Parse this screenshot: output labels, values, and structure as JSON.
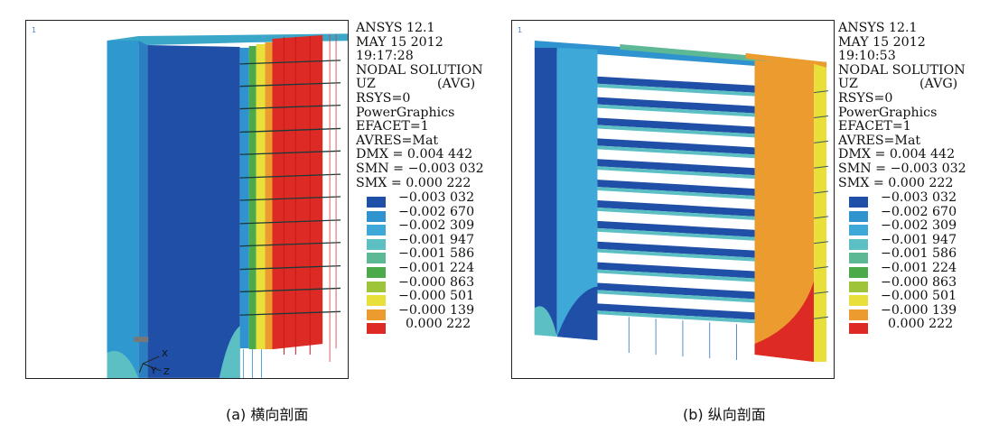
{
  "panels": [
    {
      "id": "a",
      "viewport_number": "1",
      "info": {
        "software": "ANSYS 12.1",
        "date": "MAY 15 2012",
        "time": "19:17:28",
        "solution": "NODAL SOLUTION",
        "component": "UZ",
        "avg": "(AVG)",
        "rsys": "RSYS=0",
        "graphics": "PowerGraphics",
        "efacet": "EFACET=1",
        "avres": "AVRES=Mat",
        "dmx": "DMX = 0.004 442",
        "smn": "SMN = −0.003 032",
        "smx": "SMX = 0.000 222"
      },
      "triad_labels": [
        "X",
        "Y",
        "Z"
      ],
      "caption": "(a) 横向剖面"
    },
    {
      "id": "b",
      "viewport_number": "1",
      "info": {
        "software": "ANSYS 12.1",
        "date": "MAY 15 2012",
        "time": "19:10:53",
        "solution": "NODAL SOLUTION",
        "component": "UZ",
        "avg": "(AVG)",
        "rsys": "RSYS=0",
        "graphics": "PowerGraphics",
        "efacet": "EFACET=1",
        "avres": "AVRES=Mat",
        "dmx": "DMX = 0.004 442",
        "smn": "SMN = −0.003 032",
        "smx": "SMX = 0.000 222"
      },
      "caption": "(b) 纵向剖面"
    }
  ],
  "legend": [
    {
      "label": "−0.003 032",
      "color": "#1f4fa6"
    },
    {
      "label": "−0.002 670",
      "color": "#2e93cf"
    },
    {
      "label": "−0.002 309",
      "color": "#3ea8d8"
    },
    {
      "label": "−0.001 947",
      "color": "#5cbfc4"
    },
    {
      "label": "−0.001 586",
      "color": "#5db896"
    },
    {
      "label": "−0.001 224",
      "color": "#4caa4a"
    },
    {
      "label": "−0.000 863",
      "color": "#9ec43a"
    },
    {
      "label": "−0.000 501",
      "color": "#e8df3a"
    },
    {
      "label": "−0.000 139",
      "color": "#ec9c2e"
    },
    {
      "label": "0.000 222",
      "color": "#dd2a25"
    }
  ]
}
